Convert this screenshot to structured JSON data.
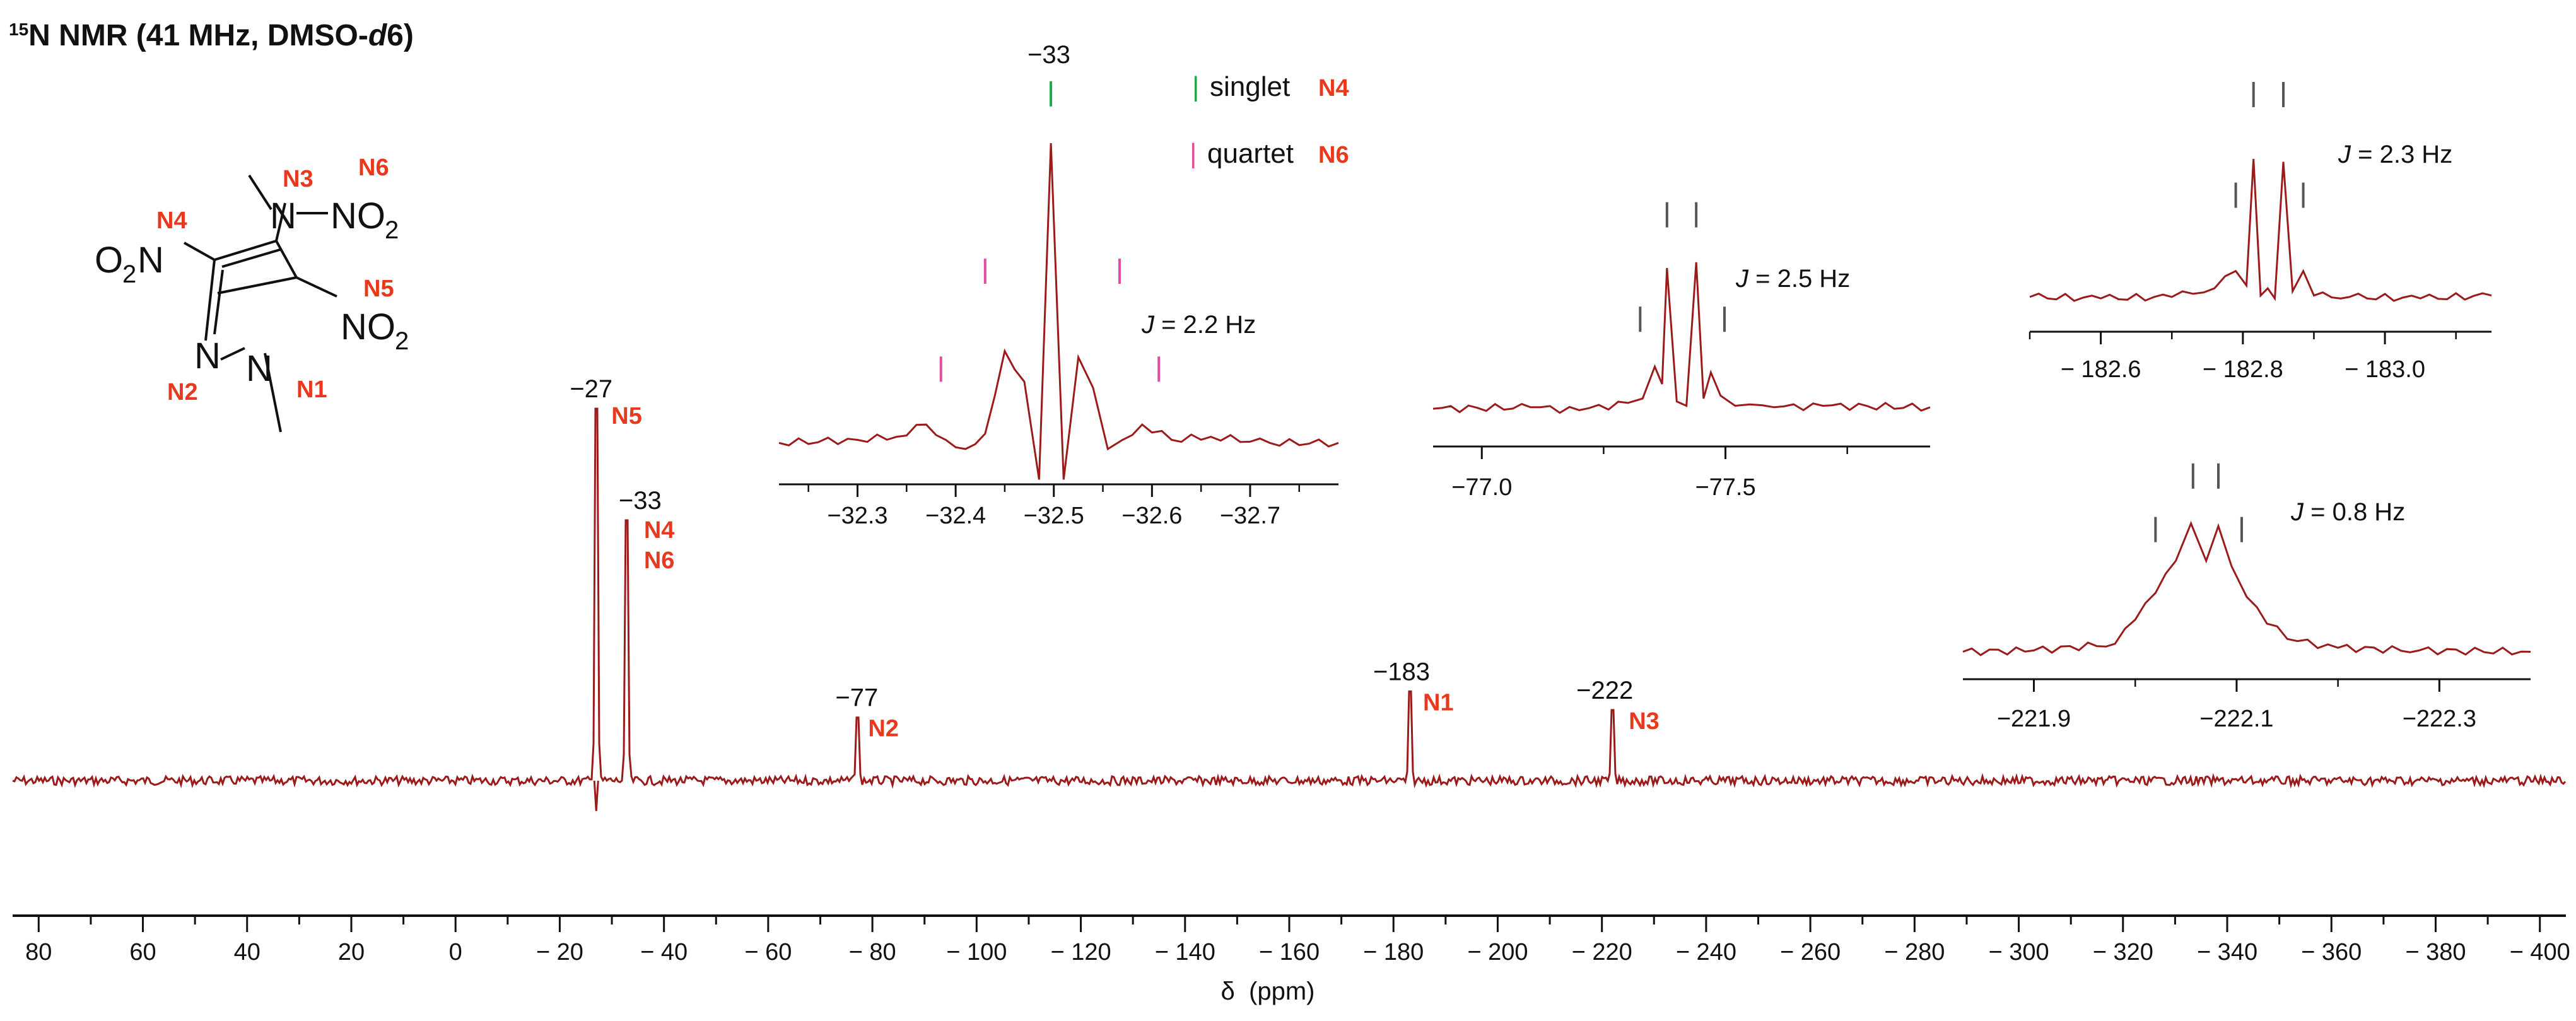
{
  "title": {
    "nucleus_sup": "15",
    "main": "N NMR (41 MHz, DMSO-",
    "solvent_italic": "d",
    "tail": "6)"
  },
  "colors": {
    "spectrum": "#9b1b1b",
    "label": "#e8391f",
    "singlet_marker": "#22a84a",
    "quartet_marker": "#e04da1",
    "coupling_marker": "#555555"
  },
  "structure": {
    "atoms": {
      "O2N": "O",
      "O2N_sub": "2",
      "O2N_N": "N",
      "N_amine": "N",
      "NO2_a": "NO",
      "NO2_a_sub": "2",
      "NO2_b": "NO",
      "NO2_b_sub": "2",
      "ring_N2": "N",
      "ring_N1": "N"
    },
    "labels": {
      "N1": "N1",
      "N2": "N2",
      "N3": "N3",
      "N4": "N4",
      "N5": "N5",
      "N6": "N6"
    }
  },
  "legend": [
    {
      "symbol": "|",
      "text": "singlet",
      "assign": "N4",
      "color": "#22a84a"
    },
    {
      "symbol": "|",
      "text": "quartet",
      "assign": "N6",
      "color": "#e04da1"
    }
  ],
  "chart_data": [
    {
      "type": "line",
      "name": "main-spectrum",
      "xlabel": "δ  (ppm)",
      "xlim": [
        85,
        -405
      ],
      "xticks": [
        80,
        60,
        40,
        20,
        0,
        -20,
        -40,
        -60,
        -80,
        -100,
        -120,
        -140,
        -160,
        -180,
        -200,
        -220,
        -240,
        -260,
        -280,
        -300,
        -320,
        -340,
        -360,
        -380,
        -400
      ],
      "xtick_labels": [
        "80",
        "60",
        "40",
        "20",
        "0",
        "− 20",
        "− 40",
        "− 60",
        "− 80",
        "− 100",
        "− 120",
        "− 140",
        "− 160",
        "− 180",
        "− 200",
        "− 220",
        "− 240",
        "− 260",
        "− 280",
        "− 300",
        "− 320",
        "− 340",
        "− 360",
        "− 380",
        "− 400"
      ],
      "peaks": [
        {
          "ppm": -27,
          "height": 1.0,
          "shift_label": "−27",
          "assign": [
            "N5"
          ]
        },
        {
          "ppm": -33,
          "height": 0.7,
          "shift_label": "−33",
          "assign": [
            "N4",
            "N6"
          ]
        },
        {
          "ppm": -77,
          "height": 0.17,
          "shift_label": "−77",
          "assign": [
            "N2"
          ]
        },
        {
          "ppm": -183,
          "height": 0.24,
          "shift_label": "−183",
          "assign": [
            "N1"
          ]
        },
        {
          "ppm": -222,
          "height": 0.19,
          "shift_label": "−222",
          "assign": [
            "N3"
          ]
        }
      ]
    },
    {
      "type": "line",
      "name": "inset-32",
      "title_top": "−33",
      "coupling": {
        "prefix": "J",
        "text": " = 2.2 Hz"
      },
      "xlim": [
        -32.22,
        -32.79
      ],
      "xticks": [
        -32.3,
        -32.4,
        -32.5,
        -32.6,
        -32.7
      ],
      "xtick_labels": [
        "−32.3",
        "−32.4",
        "−32.5",
        "−32.6",
        "−32.7"
      ],
      "x": [
        -32.22,
        -32.3,
        -32.34,
        -32.37,
        -32.39,
        -32.41,
        -32.43,
        -32.45,
        -32.47,
        -32.485,
        -32.497,
        -32.51,
        -32.525,
        -32.54,
        -32.555,
        -32.57,
        -32.59,
        -32.62,
        -32.66,
        -32.72,
        -32.79
      ],
      "y": [
        0.02,
        0.03,
        0.04,
        0.08,
        0.03,
        0.0,
        0.05,
        0.32,
        0.22,
        -0.1,
        1.0,
        -0.1,
        0.3,
        0.2,
        0.0,
        0.03,
        0.08,
        0.03,
        0.04,
        0.02,
        0.02
      ],
      "markers": [
        {
          "ppm": -32.497,
          "level": 1.12,
          "color": "#22a84a"
        },
        {
          "ppm": -32.43,
          "level": 0.54,
          "color": "#e04da1"
        },
        {
          "ppm": -32.567,
          "level": 0.54,
          "color": "#e04da1"
        },
        {
          "ppm": -32.385,
          "level": 0.22,
          "color": "#e04da1"
        },
        {
          "ppm": -32.607,
          "level": 0.22,
          "color": "#e04da1"
        }
      ]
    },
    {
      "type": "line",
      "name": "inset-77",
      "coupling": {
        "prefix": "J",
        "text": " = 2.5 Hz"
      },
      "xlim": [
        -76.9,
        -77.92
      ],
      "xticks": [
        -77.0,
        -77.5
      ],
      "xtick_labels": [
        "−77.0",
        "−77.5"
      ],
      "x": [
        -76.9,
        -77.1,
        -77.2,
        -77.3,
        -77.33,
        -77.355,
        -77.37,
        -77.38,
        -77.4,
        -77.42,
        -77.44,
        -77.455,
        -77.47,
        -77.49,
        -77.52,
        -77.55,
        -77.6,
        -77.7,
        -77.92
      ],
      "y": [
        0.03,
        0.04,
        0.02,
        0.07,
        0.1,
        0.32,
        0.2,
        1.0,
        0.08,
        0.05,
        1.04,
        0.1,
        0.28,
        0.12,
        0.05,
        0.06,
        0.04,
        0.05,
        0.04
      ],
      "markers": [
        {
          "ppm": -77.38,
          "level": 1.28,
          "color": "#555555"
        },
        {
          "ppm": -77.44,
          "level": 1.28,
          "color": "#555555"
        },
        {
          "ppm": -77.325,
          "level": 0.56,
          "color": "#555555"
        },
        {
          "ppm": -77.498,
          "level": 0.56,
          "color": "#555555"
        }
      ]
    },
    {
      "type": "line",
      "name": "inset-183",
      "coupling": {
        "prefix": "J",
        "text": " = 2.3 Hz"
      },
      "xlim": [
        -182.5,
        -183.15
      ],
      "xticks": [
        -182.6,
        -182.8,
        -183.0
      ],
      "xtick_labels": [
        "− 182.6",
        "− 182.8",
        "− 183.0"
      ],
      "x": [
        -182.5,
        -182.6,
        -182.7,
        -182.76,
        -182.79,
        -182.805,
        -182.815,
        -182.825,
        -182.835,
        -182.845,
        -182.857,
        -182.87,
        -182.885,
        -182.9,
        -182.95,
        -183.05,
        -183.15
      ],
      "y": [
        0.04,
        0.03,
        0.04,
        0.1,
        0.22,
        0.12,
        1.0,
        0.05,
        0.1,
        0.03,
        0.98,
        0.08,
        0.22,
        0.05,
        0.04,
        0.03,
        0.05
      ],
      "markers": [
        {
          "ppm": -182.815,
          "level": 1.36,
          "color": "#555555"
        },
        {
          "ppm": -182.857,
          "level": 1.36,
          "color": "#555555"
        },
        {
          "ppm": -182.79,
          "level": 0.66,
          "color": "#555555"
        },
        {
          "ppm": -182.885,
          "level": 0.66,
          "color": "#555555"
        }
      ]
    },
    {
      "type": "line",
      "name": "inset-222",
      "coupling": {
        "prefix": "J",
        "text": " = 0.8 Hz"
      },
      "xlim": [
        -221.83,
        -222.39
      ],
      "xticks": [
        -221.9,
        -222.1,
        -222.3
      ],
      "xtick_labels": [
        "−221.9",
        "−222.1",
        "−222.3"
      ],
      "x": [
        -221.83,
        -221.9,
        -221.98,
        -222.0,
        -222.02,
        -222.04,
        -222.055,
        -222.07,
        -222.082,
        -222.095,
        -222.11,
        -222.13,
        -222.16,
        -222.2,
        -222.28,
        -222.39
      ],
      "y": [
        0.04,
        0.05,
        0.1,
        0.28,
        0.48,
        0.72,
        1.0,
        0.72,
        0.98,
        0.68,
        0.45,
        0.25,
        0.12,
        0.07,
        0.05,
        0.04
      ],
      "markers": [
        {
          "ppm": -222.057,
          "level": 1.26,
          "color": "#555555"
        },
        {
          "ppm": -222.082,
          "level": 1.26,
          "color": "#555555"
        },
        {
          "ppm": -222.02,
          "level": 0.86,
          "color": "#555555"
        },
        {
          "ppm": -222.105,
          "level": 0.86,
          "color": "#555555"
        }
      ]
    }
  ]
}
